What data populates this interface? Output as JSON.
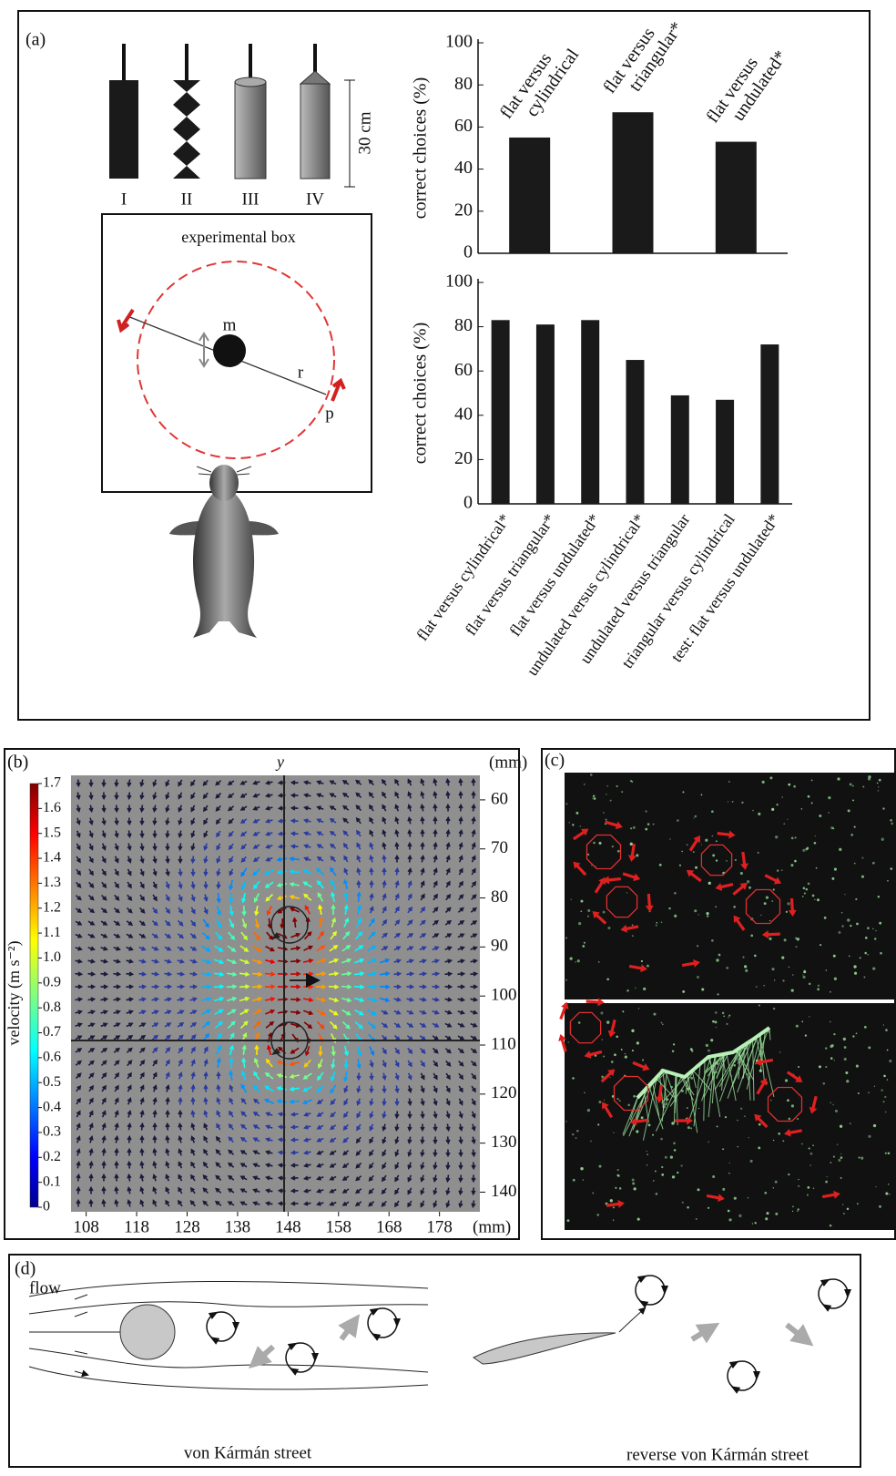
{
  "panel_labels": [
    "(a)",
    "(b)",
    "(c)",
    "(d)"
  ],
  "objects": {
    "labels": [
      "I",
      "II",
      "III",
      "IV"
    ],
    "scale": "30 cm"
  },
  "experimental_box": {
    "title": "experimental box",
    "labels": [
      "m",
      "r",
      "p"
    ]
  },
  "chart_data": [
    {
      "type": "bar",
      "categories": [
        "flat versus cylindrical",
        "flat versus triangular*",
        "flat versus undulated*"
      ],
      "values": [
        55,
        67,
        53
      ],
      "color": "#1a1a1a",
      "ylabel": "correct choices (%)",
      "ylim": [
        0,
        100
      ],
      "yticks": [
        0,
        20,
        40,
        60,
        80,
        100
      ]
    },
    {
      "type": "bar",
      "categories": [
        "flat versus cylindrical*",
        "flat versus triangular*",
        "flat versus undulated*",
        "undulated versus cylindrical*",
        "undulated versus triangular",
        "triangular versus cylindrical",
        "test: flat versus undulated*"
      ],
      "values": [
        83,
        81,
        83,
        65,
        49,
        47,
        72
      ],
      "color": "#1a1a1a",
      "ylabel": "correct choices (%)",
      "ylim": [
        0,
        100
      ],
      "yticks": [
        0,
        20,
        40,
        60,
        80,
        100
      ]
    },
    {
      "type": "quiver",
      "xlim": [
        105,
        186
      ],
      "ylim": [
        144,
        55
      ],
      "xticks": [
        108,
        118,
        128,
        138,
        148,
        158,
        168,
        178
      ],
      "yticks": [
        60,
        70,
        80,
        90,
        100,
        110,
        120,
        130,
        140
      ],
      "x_unit": "(mm)",
      "y_unit": "(mm)",
      "y_axis_label": "y",
      "colorbar": {
        "label": "velocity (m s⁻²)",
        "lim": [
          0,
          1.7
        ],
        "ticks": [
          0,
          0.1,
          0.2,
          0.3,
          0.4,
          0.5,
          0.6,
          0.7,
          0.8,
          0.9,
          {
            "value": 1,
            "label": "1.0"
          },
          1.1,
          1.2,
          1.3,
          1.4,
          1.5,
          1.6,
          1.7
        ]
      }
    }
  ],
  "flow": {
    "label": "flow",
    "left": "von Kármán street",
    "right": "reverse von Kármán street"
  }
}
